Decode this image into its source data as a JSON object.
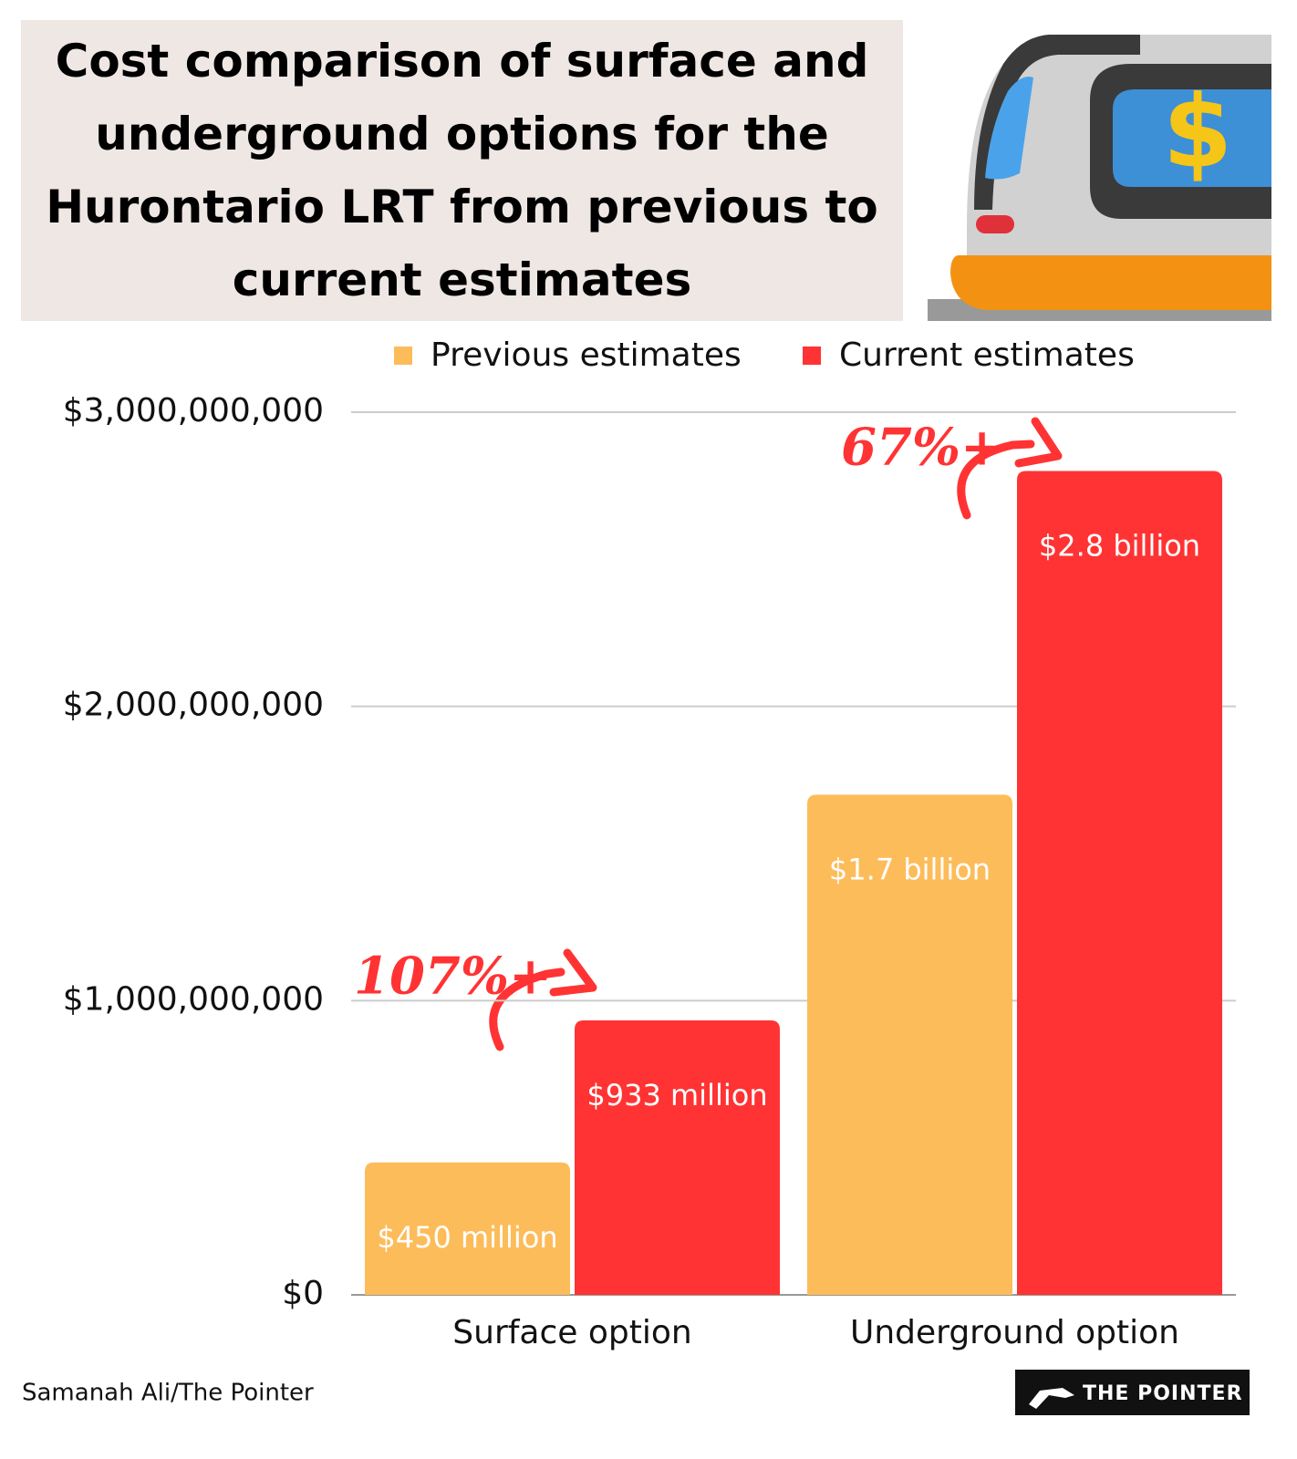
{
  "chart_data": {
    "type": "bar",
    "title": "Cost comparison of surface and underground options for the Hurontario LRT from previous to current estimates",
    "categories": [
      "Surface option",
      "Underground option"
    ],
    "series": [
      {
        "name": "Previous estimates",
        "color": "#fdbc5a",
        "values": [
          450000000,
          1700000000
        ],
        "value_labels": [
          "$450 million",
          "$1.7 billion"
        ]
      },
      {
        "name": "Current estimates",
        "color": "#ff3333",
        "values": [
          933000000,
          2800000000
        ],
        "value_labels": [
          "$933 million",
          "$2.8 billion"
        ]
      }
    ],
    "ylim": [
      0,
      3000000000
    ],
    "yticks": [
      {
        "value": 0,
        "label": "$0"
      },
      {
        "value": 1000000000,
        "label": "$1,000,000,000"
      },
      {
        "value": 2000000000,
        "label": "$2,000,000,000"
      },
      {
        "value": 3000000000,
        "label": "$3,000,000,000"
      }
    ],
    "grid": true,
    "legend": "top",
    "annotations": [
      "107%+",
      "67%+"
    ],
    "credit": "Samanah Ali/The Pointer",
    "logo": "THE POINTER"
  }
}
